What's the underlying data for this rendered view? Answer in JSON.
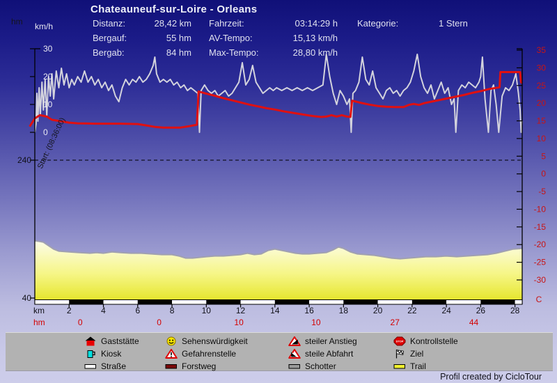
{
  "title": "Chateauneuf-sur-Loire  -  Orleans",
  "header": {
    "rows": [
      {
        "l1": "Distanz:",
        "v1": "28,42 km",
        "l2": "Fahrzeit:",
        "v2": "03:14:29 h"
      },
      {
        "l1": "Bergauf:",
        "v1": "55 hm",
        "l2": "AV-Tempo:",
        "v2": "15,13 km/h"
      },
      {
        "l1": "Bergab:",
        "v1": "84 hm",
        "l2": "Max-Tempo:",
        "v2": "28,80 km/h"
      }
    ],
    "kategorie_label": "Kategorie:",
    "kategorie_value": "1 Stern"
  },
  "axis_unit_left_elevation": "hm",
  "axis_unit_left_speed": "km/h",
  "chart_data": {
    "type": "line",
    "title": "Chateauneuf-sur-Loire - Orleans",
    "x_axis": {
      "label": "km",
      "ticks": [
        2,
        4,
        6,
        8,
        10,
        12,
        14,
        16,
        18,
        20,
        22,
        24,
        26,
        28
      ],
      "range": [
        0,
        28.42
      ]
    },
    "left_axis_speed": {
      "label": "km/h",
      "ticks": [
        30,
        20,
        10,
        0
      ],
      "range": [
        0,
        30
      ]
    },
    "left_axis_elevation": {
      "label": "hm",
      "ticks": [
        240,
        40
      ],
      "range": [
        40,
        440
      ],
      "dashed_gridline_at": 240
    },
    "right_axis_temperature": {
      "label": "C",
      "ticks": [
        35,
        30,
        25,
        20,
        15,
        10,
        5,
        0,
        -5,
        -10,
        -15,
        -20,
        -25,
        -30
      ],
      "range": [
        -32.5,
        35
      ]
    },
    "start_annotation": "Start: (08:36:00)",
    "hm_row": {
      "label": "hm",
      "entries": [
        {
          "km": 2.65,
          "value": "0"
        },
        {
          "km": 7.25,
          "value": "0"
        },
        {
          "km": 11.9,
          "value": "10"
        },
        {
          "km": 16.4,
          "value": "10"
        },
        {
          "km": 21.0,
          "value": "27"
        },
        {
          "km": 25.6,
          "value": "44"
        }
      ]
    },
    "surface_bar": {
      "pattern": "alternating-2km",
      "colors": [
        "#ffffff",
        "#000000"
      ]
    },
    "series": [
      {
        "name": "speed_kmh",
        "color": "#d3d3dd",
        "x": [
          0,
          0.07,
          0.12,
          0.18,
          0.25,
          0.32,
          0.42,
          0.5,
          0.6,
          0.7,
          0.8,
          0.9,
          1.0,
          1.1,
          1.25,
          1.4,
          1.55,
          1.7,
          1.85,
          2.0,
          2.15,
          2.3,
          2.5,
          2.7,
          2.9,
          3.1,
          3.3,
          3.5,
          3.7,
          3.9,
          4.1,
          4.3,
          4.5,
          4.7,
          4.9,
          5.1,
          5.3,
          5.5,
          5.7,
          5.9,
          6.1,
          6.3,
          6.5,
          6.7,
          6.9,
          7.0,
          7.1,
          7.3,
          7.5,
          7.7,
          7.9,
          8.1,
          8.3,
          8.5,
          8.7,
          8.9,
          9.1,
          9.3,
          9.5,
          9.6,
          9.7,
          9.9,
          10.1,
          10.3,
          10.5,
          10.7,
          10.9,
          11.1,
          11.3,
          11.5,
          11.7,
          11.9,
          12.1,
          12.3,
          12.5,
          12.7,
          12.9,
          13.1,
          13.3,
          13.5,
          13.7,
          13.9,
          14.1,
          14.4,
          14.7,
          15.0,
          15.3,
          15.6,
          15.9,
          16.2,
          16.5,
          16.8,
          17.0,
          17.2,
          17.4,
          17.6,
          17.8,
          18.0,
          18.2,
          18.35,
          18.45,
          18.55,
          18.7,
          18.9,
          19.1,
          19.3,
          19.5,
          19.7,
          19.9,
          20.1,
          20.3,
          20.5,
          20.7,
          20.9,
          21.1,
          21.3,
          21.5,
          21.7,
          21.9,
          22.1,
          22.3,
          22.5,
          22.7,
          22.9,
          23.1,
          23.3,
          23.5,
          23.7,
          23.9,
          24.1,
          24.3,
          24.45,
          24.55,
          24.7,
          24.9,
          25.1,
          25.3,
          25.5,
          25.7,
          25.9,
          26.0,
          26.1,
          26.25,
          26.45,
          26.6,
          26.75,
          26.9,
          27.05,
          27.25,
          27.45,
          27.65,
          27.85,
          28.05,
          28.2,
          28.3,
          28.36,
          28.42
        ],
        "values": [
          0,
          3,
          14,
          4,
          16,
          6,
          18,
          8,
          19,
          6,
          20,
          13,
          21,
          12,
          22,
          16,
          23,
          17,
          21,
          16,
          19,
          17,
          20,
          18,
          22,
          18,
          20,
          17,
          19,
          16,
          18,
          15,
          17,
          13,
          11,
          16,
          19,
          17,
          19,
          18,
          20,
          18,
          19,
          21,
          24,
          27,
          21,
          18,
          19,
          18,
          19,
          17,
          18,
          16,
          17,
          15,
          16,
          15,
          14,
          0,
          15,
          17,
          15,
          14,
          15,
          13,
          14,
          15,
          13,
          14,
          16,
          18,
          25,
          17,
          19,
          24,
          18,
          16,
          14,
          15,
          16,
          15,
          16,
          15,
          16,
          15,
          16,
          15,
          16,
          15,
          16,
          17,
          28,
          20,
          14,
          10,
          15,
          13,
          10,
          12,
          0,
          14,
          15,
          18,
          27,
          19,
          17,
          22,
          16,
          14,
          12,
          15,
          16,
          14,
          15,
          13,
          15,
          16,
          18,
          22,
          28,
          20,
          16,
          14,
          17,
          12,
          15,
          18,
          14,
          16,
          10,
          12,
          0,
          15,
          17,
          16,
          18,
          17,
          16,
          18,
          20,
          27,
          12,
          0,
          15,
          17,
          10,
          0,
          13,
          16,
          15,
          17,
          21,
          14,
          8,
          0,
          4
        ]
      },
      {
        "name": "temperature_c",
        "color": "#e01010",
        "x": [
          -0.3,
          0,
          0.3,
          0.7,
          1.0,
          1.5,
          2.0,
          2.5,
          3.5,
          5.0,
          6.0,
          6.5,
          7.0,
          7.5,
          8.5,
          9.0,
          9.45,
          9.55,
          10.0,
          10.5,
          11.0,
          11.5,
          12.0,
          12.5,
          13.0,
          13.5,
          14.0,
          14.5,
          15.0,
          15.5,
          16.0,
          16.3,
          16.7,
          17.0,
          17.3,
          17.6,
          17.9,
          18.2,
          18.4,
          18.5,
          19.0,
          19.5,
          20.0,
          20.5,
          21.0,
          21.5,
          21.8,
          22.1,
          22.4,
          22.7,
          23.0,
          23.5,
          24.0,
          24.5,
          25.0,
          25.5,
          26.0,
          26.5,
          27.1,
          27.15,
          28.3,
          28.35,
          28.42
        ],
        "values": [
          13.4,
          15.7,
          16.6,
          16.2,
          15.3,
          14.9,
          14.5,
          14.3,
          14.2,
          14.2,
          14.1,
          13.7,
          13.3,
          13.1,
          13.1,
          13.5,
          13.9,
          23.3,
          22.7,
          22.1,
          21.4,
          20.8,
          20.2,
          19.6,
          19.1,
          18.6,
          18.2,
          17.7,
          17.3,
          16.9,
          16.5,
          16.3,
          16.1,
          16.2,
          16.6,
          16.2,
          16.6,
          16.2,
          16.1,
          20.7,
          20.1,
          19.6,
          19.2,
          19.0,
          18.9,
          18.9,
          19.5,
          19.8,
          19.5,
          20.0,
          20.3,
          20.8,
          21.3,
          21.8,
          22.3,
          22.9,
          23.4,
          24.0,
          24.5,
          28.8,
          28.8,
          26.0,
          25.6
        ]
      },
      {
        "name": "elevation_hm",
        "stroke": "#a0a0b0",
        "fill_top": "#fcfce8",
        "fill_bottom": "#e6e62e",
        "x": [
          0,
          0.3,
          0.5,
          0.8,
          1.1,
          1.4,
          2.0,
          2.6,
          3.2,
          3.6,
          4.0,
          4.5,
          5.0,
          5.6,
          6.2,
          6.8,
          7.4,
          8.0,
          8.4,
          8.8,
          9.2,
          9.6,
          10.0,
          10.5,
          11.0,
          11.5,
          12.0,
          12.4,
          12.8,
          13.2,
          13.6,
          14.0,
          14.4,
          14.8,
          15.2,
          15.6,
          16.0,
          16.5,
          17.0,
          17.4,
          17.7,
          18.0,
          18.4,
          18.8,
          19.3,
          19.8,
          20.3,
          20.8,
          21.3,
          21.8,
          22.3,
          22.8,
          23.4,
          24.0,
          24.6,
          25.2,
          25.8,
          26.4,
          26.9,
          27.4,
          27.9,
          28.42
        ],
        "values": [
          123,
          122,
          121,
          116,
          111,
          108,
          107,
          106,
          105,
          106,
          105,
          107,
          106,
          105,
          105,
          104,
          103,
          103,
          101,
          98,
          98,
          99,
          100,
          101,
          101,
          102,
          103,
          105,
          103,
          104,
          109,
          111,
          109,
          107,
          105,
          104,
          104,
          105,
          106,
          110,
          114,
          112,
          107,
          104,
          103,
          102,
          100,
          98,
          97,
          98,
          99,
          100,
          100,
          101,
          100,
          101,
          102,
          103,
          105,
          108,
          111,
          112
        ]
      }
    ]
  },
  "legend": {
    "columns": [
      [
        {
          "icon": "restaurant-icon",
          "label": "Gaststätte"
        },
        {
          "icon": "kiosk-icon",
          "label": "Kiosk"
        },
        {
          "icon": "road-icon",
          "label": "Straße"
        }
      ],
      [
        {
          "icon": "sight-icon",
          "label": "Sehenswürdigkeit"
        },
        {
          "icon": "danger-icon",
          "label": "Gefahrenstelle"
        },
        {
          "icon": "forest-road-icon",
          "label": "Forstweg"
        }
      ],
      [
        {
          "icon": "steep-climb-icon",
          "label": "steiler Anstieg"
        },
        {
          "icon": "steep-descent-icon",
          "label": "steile Abfahrt"
        },
        {
          "icon": "gravel-icon",
          "label": "Schotter"
        }
      ],
      [
        {
          "icon": "checkpoint-icon",
          "label": "Kontrollstelle"
        },
        {
          "icon": "finish-flag-icon",
          "label": "Ziel"
        },
        {
          "icon": "trail-icon",
          "label": "Trail"
        }
      ]
    ]
  },
  "footer": {
    "credit": "Profil created by CicloTour"
  }
}
